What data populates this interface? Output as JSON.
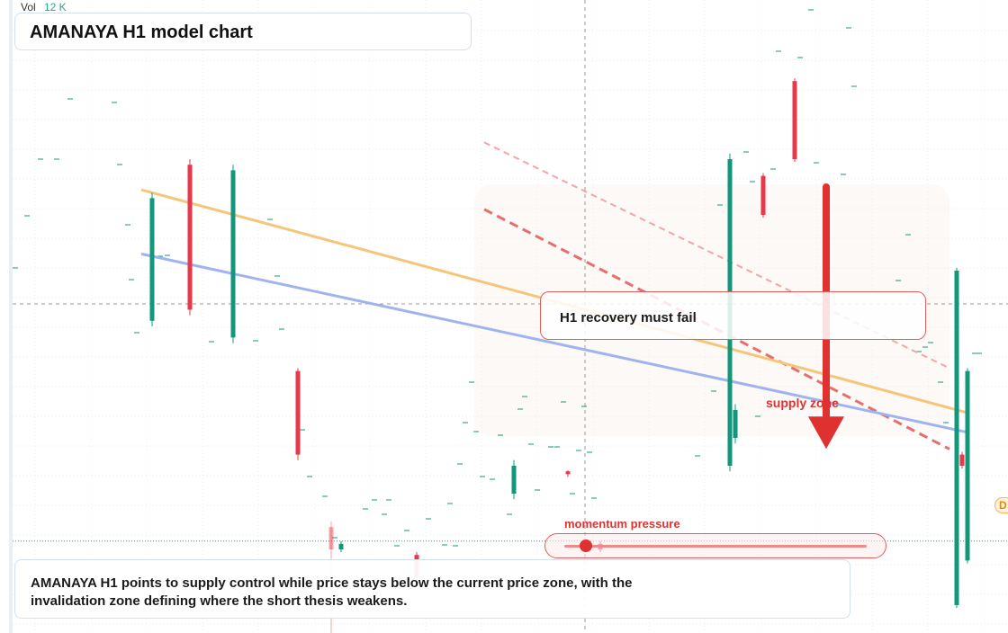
{
  "header": {
    "vol_label": "Vol",
    "vol_value": "12 K"
  },
  "title": "AMANAYA H1 model chart",
  "annotations": {
    "bubble": "H1 recovery must fail",
    "supply_label": "supply zone",
    "momentum_label": "momentum pressure",
    "momentum_level": 0.07,
    "badge": "D"
  },
  "description": "AMANAYA H1 points to supply control while price stays below the current price zone, with the invalidation zone defining where the short thesis weakens.",
  "colors": {
    "up": "#13977a",
    "down": "#e8394a",
    "ema_fast": "#f7c57a",
    "ema_slow": "#9fb4ef",
    "supply": "#e03131"
  },
  "chart_data": {
    "type": "candlestick",
    "ylim": [
      0,
      100
    ],
    "candles": [
      {
        "x": 169,
        "o": 78,
        "c": 56,
        "h": 79,
        "l": 55,
        "dir": "up"
      },
      {
        "x": 211,
        "o": 84,
        "c": 58,
        "h": 85,
        "l": 57,
        "dir": "down"
      },
      {
        "x": 259,
        "o": 83,
        "c": 53,
        "h": 84,
        "l": 52,
        "dir": "up"
      },
      {
        "x": 331,
        "o": 47,
        "c": 32,
        "h": 47.5,
        "l": 31,
        "dir": "down"
      },
      {
        "x": 368,
        "o": 19,
        "c": 15,
        "h": 20,
        "l": 0,
        "dir": "down_faded"
      },
      {
        "x": 379,
        "o": 16,
        "c": 15,
        "h": 16.5,
        "l": 14.5,
        "dir": "up"
      },
      {
        "x": 463,
        "o": 14,
        "c": 10,
        "h": 14.5,
        "l": 9,
        "dir": "down"
      },
      {
        "x": 571,
        "o": 30,
        "c": 25,
        "h": 31,
        "l": 24,
        "dir": "up"
      },
      {
        "x": 631,
        "o": 29,
        "c": 28.5,
        "h": 29.2,
        "l": 28,
        "dir": "down"
      },
      {
        "x": 667,
        "o": 16,
        "c": 15,
        "h": 16.5,
        "l": 14.5,
        "dir": "down"
      },
      {
        "x": 811,
        "o": 85,
        "c": 30,
        "h": 86,
        "l": 29,
        "dir": "up"
      },
      {
        "x": 817,
        "o": 40,
        "c": 35,
        "h": 41,
        "l": 34,
        "dir": "up"
      },
      {
        "x": 848,
        "o": 82,
        "c": 75,
        "h": 82.5,
        "l": 74.5,
        "dir": "down"
      },
      {
        "x": 883,
        "o": 99,
        "c": 85,
        "h": 99.5,
        "l": 84.5,
        "dir": "down"
      },
      {
        "x": 1063,
        "o": 65,
        "c": 5,
        "h": 65.5,
        "l": 4.5,
        "dir": "up"
      },
      {
        "x": 1069,
        "o": 32,
        "c": 30,
        "h": 32.5,
        "l": 29.5,
        "dir": "down"
      },
      {
        "x": 1075,
        "o": 47,
        "c": 13,
        "h": 47.5,
        "l": 12.5,
        "dir": "up"
      }
    ],
    "ema_fast": [
      [
        157,
        79.5
      ],
      [
        1075,
        39.5
      ]
    ],
    "ema_slow": [
      [
        157,
        68
      ],
      [
        1075,
        36
      ]
    ],
    "resistance_1": [
      [
        538,
        76
      ],
      [
        1055,
        33
      ]
    ],
    "resistance_2": [
      [
        538,
        88
      ],
      [
        1055,
        47.5
      ]
    ],
    "supply_arrow": {
      "x": 918,
      "from": 80,
      "to": 34
    },
    "current_price": 16.5
  }
}
